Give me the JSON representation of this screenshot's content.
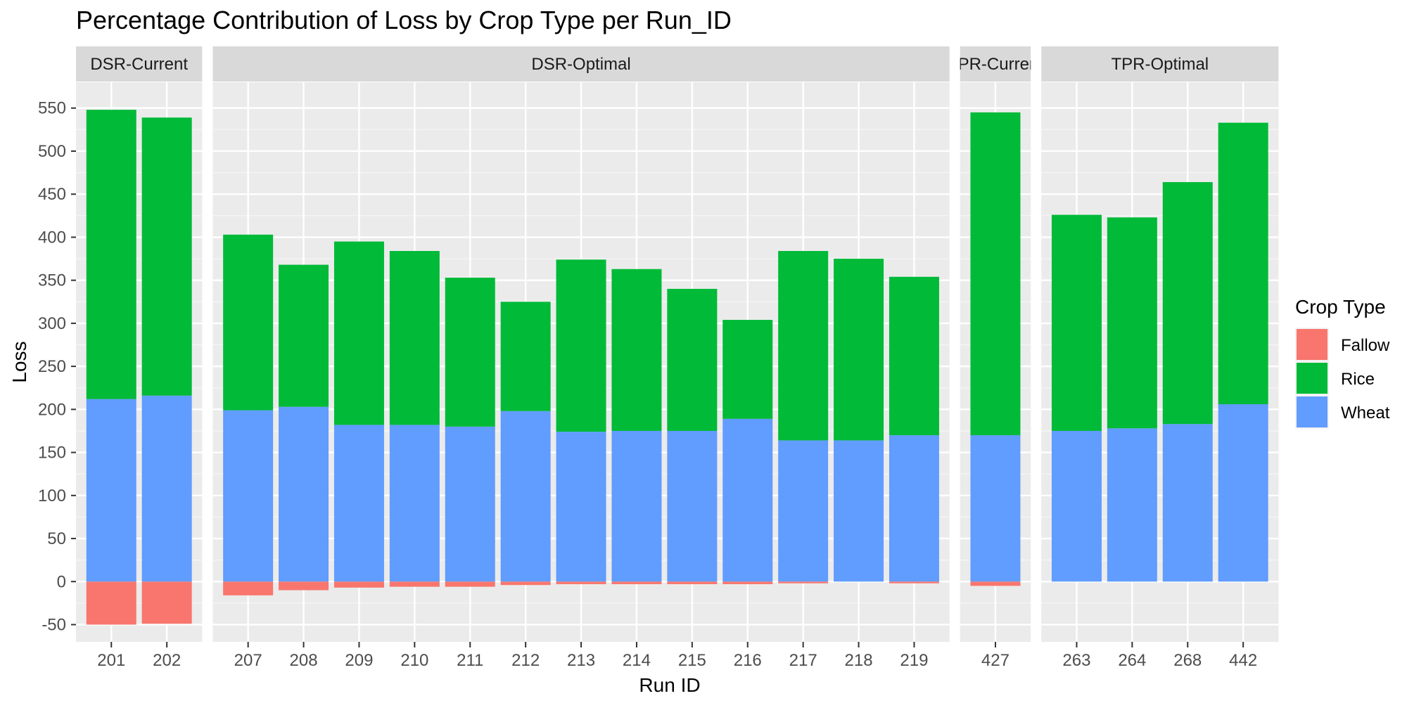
{
  "chart_data": {
    "type": "bar",
    "stacked": true,
    "title": "Percentage Contribution of Loss by Crop Type per Run_ID",
    "xlabel": "Run ID",
    "ylabel": "Loss",
    "ylim": [
      -70,
      580
    ],
    "yticks": [
      -50,
      0,
      50,
      100,
      150,
      200,
      250,
      300,
      350,
      400,
      450,
      500,
      550
    ],
    "grid": true,
    "legend": {
      "title": "Crop Type",
      "position": "right",
      "entries": [
        {
          "name": "Fallow",
          "color": "#F8766D"
        },
        {
          "name": "Rice",
          "color": "#00BA38"
        },
        {
          "name": "Wheat",
          "color": "#619CFF"
        }
      ]
    },
    "facets": [
      {
        "label": "DSR-Current",
        "categories": [
          "201",
          "202"
        ],
        "series": [
          {
            "name": "Fallow",
            "values": [
              -50,
              -49
            ]
          },
          {
            "name": "Wheat",
            "values": [
              212,
              216
            ]
          },
          {
            "name": "Rice",
            "values": [
              336,
              323
            ]
          }
        ]
      },
      {
        "label": "DSR-Optimal",
        "categories": [
          "207",
          "208",
          "209",
          "210",
          "211",
          "212",
          "213",
          "214",
          "215",
          "216",
          "217",
          "218",
          "219"
        ],
        "series": [
          {
            "name": "Fallow",
            "values": [
              -16,
              -10,
              -7,
              -6,
              -6,
              -4,
              -3,
              -3,
              -3,
              -3,
              -2,
              0,
              -2
            ]
          },
          {
            "name": "Wheat",
            "values": [
              199,
              203,
              182,
              182,
              180,
              198,
              174,
              175,
              175,
              189,
              164,
              164,
              170
            ]
          },
          {
            "name": "Rice",
            "values": [
              204,
              165,
              213,
              202,
              173,
              127,
              200,
              188,
              165,
              115,
              220,
              211,
              184
            ]
          }
        ]
      },
      {
        "label": "TPR-Current",
        "categories": [
          "427"
        ],
        "series": [
          {
            "name": "Fallow",
            "values": [
              -5
            ]
          },
          {
            "name": "Wheat",
            "values": [
              170
            ]
          },
          {
            "name": "Rice",
            "values": [
              375
            ]
          }
        ]
      },
      {
        "label": "TPR-Optimal",
        "categories": [
          "263",
          "264",
          "268",
          "442"
        ],
        "series": [
          {
            "name": "Fallow",
            "values": [
              0,
              0,
              0,
              0
            ]
          },
          {
            "name": "Wheat",
            "values": [
              175,
              178,
              183,
              206
            ]
          },
          {
            "name": "Rice",
            "values": [
              251,
              245,
              281,
              327
            ]
          }
        ]
      }
    ]
  }
}
